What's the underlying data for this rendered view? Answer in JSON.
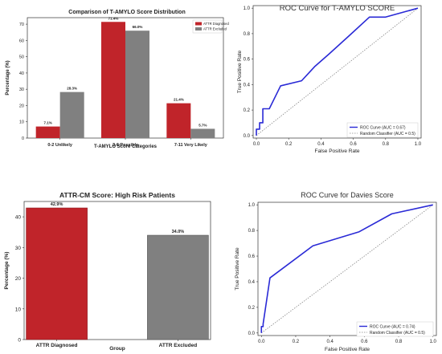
{
  "colors": {
    "diagnosed": "#c0242a",
    "excluded": "#808080",
    "roc": "#2a2ad6",
    "random": "#888888"
  },
  "chart_data": [
    {
      "type": "bar",
      "title": "Comparison of T-AMYLO Score Distribution",
      "xlabel": "T-AMYLO Score Categories",
      "ylabel": "Percentage (%)",
      "categories": [
        "0-2 Unlikely",
        "3-6 Possible",
        "7-11 Very Likely"
      ],
      "series": [
        {
          "name": "ATTR Diagnosed",
          "values": [
            7.1,
            71.4,
            21.4
          ],
          "labels": [
            "7.1%",
            "71.4%",
            "21.4%"
          ]
        },
        {
          "name": "ATTR Excluded",
          "values": [
            28.3,
            66.0,
            5.7
          ],
          "labels": [
            "28.3%",
            "66.0%",
            "5.7%"
          ]
        }
      ],
      "ylim": [
        0,
        74
      ],
      "yticks": [
        "0",
        "10",
        "20",
        "30",
        "40",
        "50",
        "60",
        "70"
      ],
      "legend": "top-right",
      "grid": false
    },
    {
      "type": "line",
      "title": "ROC Curve for T-AMYLO SCORE",
      "xlabel": "False Positive Rate",
      "ylabel": "True Positive Rate",
      "xlim": [
        -0.02,
        1.02
      ],
      "ylim": [
        -0.02,
        1.02
      ],
      "xticks": [
        "0.0",
        "0.2",
        "0.4",
        "0.6",
        "0.8",
        "1.0"
      ],
      "yticks": [
        "0.0",
        "0.2",
        "0.4",
        "0.6",
        "0.8",
        "1.0"
      ],
      "series": [
        {
          "name": "ROC Curve (AUC = 0.67)",
          "x": [
            0,
            0,
            0.02,
            0.02,
            0.04,
            0.04,
            0.08,
            0.15,
            0.28,
            0.36,
            0.45,
            0.58,
            0.7,
            0.8,
            1.0
          ],
          "y": [
            0,
            0.05,
            0.05,
            0.1,
            0.1,
            0.21,
            0.21,
            0.39,
            0.43,
            0.54,
            0.64,
            0.79,
            0.93,
            0.93,
            1.0
          ]
        },
        {
          "name": "Random Classifier (AUC = 0.5)",
          "x": [
            0,
            1
          ],
          "y": [
            0,
            1
          ]
        }
      ],
      "legend": "lower-right",
      "grid": false
    },
    {
      "type": "bar",
      "title": "ATTR-CM Score: High Risk Patients",
      "xlabel": "Group",
      "ylabel": "Percentage (%)",
      "categories": [
        "ATTR Diagnosed",
        "ATTR Excluded"
      ],
      "values": [
        42.9,
        34.0
      ],
      "labels": [
        "42.9%",
        "34.0%"
      ],
      "ylim": [
        0,
        45
      ],
      "yticks": [
        "0",
        "10",
        "20",
        "30",
        "40"
      ],
      "grid": false
    },
    {
      "type": "line",
      "title": "ROC Curve for Davies Score",
      "xlabel": "False Positive Rate",
      "ylabel": "True Positive Rate",
      "xlim": [
        -0.02,
        1.02
      ],
      "ylim": [
        -0.02,
        1.02
      ],
      "xticks": [
        "0.0",
        "0.2",
        "0.4",
        "0.6",
        "0.8",
        "1.0"
      ],
      "yticks": [
        "0.0",
        "0.2",
        "0.4",
        "0.6",
        "0.8",
        "1.0"
      ],
      "series": [
        {
          "name": "ROC Curve (AUC = 0.74)",
          "x": [
            0,
            0,
            0.01,
            0.01,
            0.05,
            0.3,
            0.57,
            0.76,
            1.0
          ],
          "y": [
            0,
            0.05,
            0.05,
            0.07,
            0.43,
            0.68,
            0.79,
            0.93,
            1.0
          ]
        },
        {
          "name": "Random Classifier (AUC = 0.5)",
          "x": [
            0,
            1
          ],
          "y": [
            0,
            1
          ]
        }
      ],
      "legend": "lower-right",
      "grid": false
    }
  ]
}
